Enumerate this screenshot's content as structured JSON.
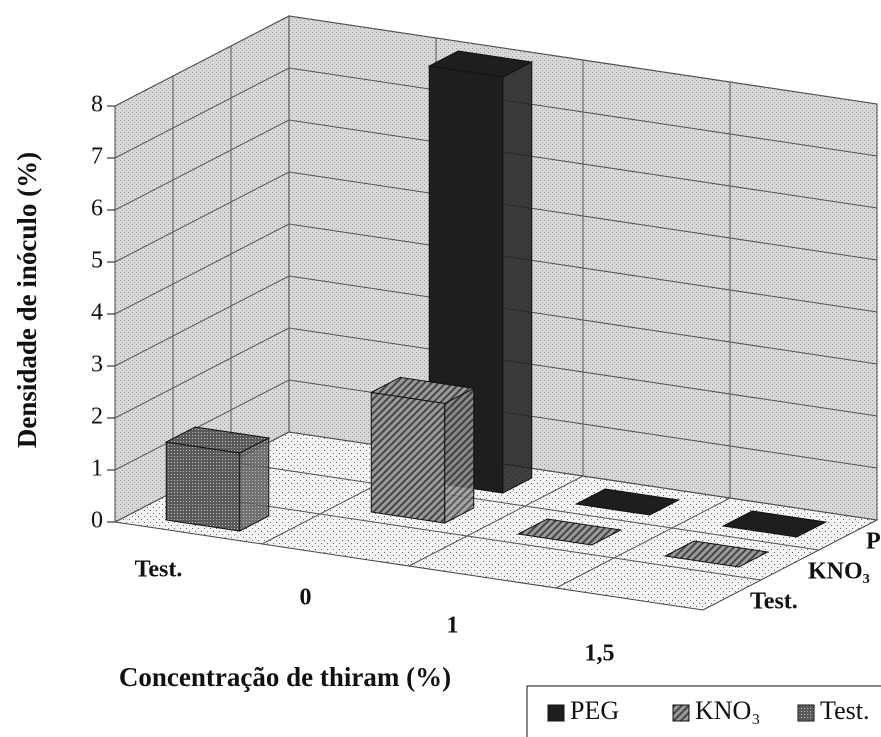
{
  "chart_data": {
    "type": "bar3d",
    "x_label": "Concentração de thiram (%)",
    "y_label": "Densidade de inóculo (%)",
    "categories": [
      "Test.",
      "0",
      "1",
      "1,5"
    ],
    "series": [
      {
        "name": "PEG",
        "color": "#1e1e1e",
        "values": [
          null,
          8.0,
          0,
          0
        ]
      },
      {
        "name": "KNO₃",
        "color": "#7a7a7a",
        "values": [
          null,
          2.3,
          0,
          0
        ]
      },
      {
        "name": "Test.",
        "color": "#4a4a4a",
        "values": [
          1.5,
          null,
          null,
          null
        ]
      }
    ],
    "ylim": [
      0,
      8
    ],
    "yticks": [
      0,
      1,
      2,
      3,
      4,
      5,
      6,
      7,
      8
    ],
    "grid": true,
    "legend": "bottom-right"
  }
}
